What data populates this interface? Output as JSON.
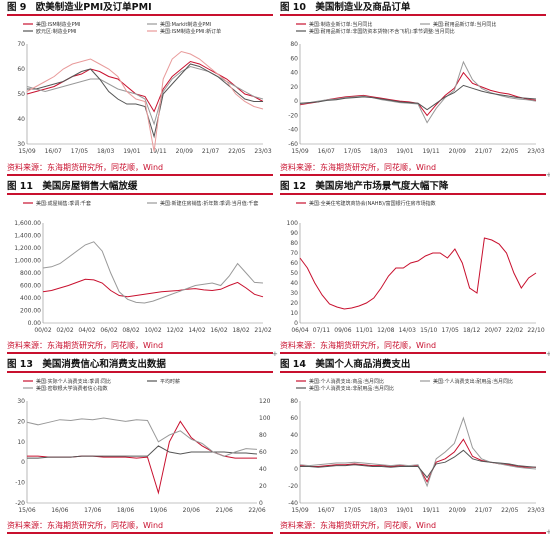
{
  "source_text": "资料来源：东海期货研究所，同花顺，Wind",
  "panels": [
    {
      "fig": "图 9",
      "title": "欧美制造业PMI及订单PMI",
      "chart_data": {
        "type": "line",
        "legend": [
          "美国:ISM制造业PMI",
          "美国:Markit制造业PMI",
          "欧元区:制造业PMI",
          "美国:ISM制造业PMI:新订单"
        ],
        "colors": [
          "#c8102e",
          "#999999",
          "#555555",
          "#e89a9a"
        ],
        "xticks": [
          "15/09",
          "16/07",
          "17/05",
          "18/03",
          "19/01",
          "19/11",
          "20/09",
          "21/07",
          "22/05",
          "23/03"
        ],
        "yticks": [
          "70",
          "60",
          "50",
          "40",
          "30"
        ],
        "ylim": [
          30,
          70
        ],
        "series": [
          {
            "values": [
              50,
              51,
              52,
              53,
              55,
              57,
              58,
              60,
              59,
              57,
              56,
              53,
              50,
              49,
              43,
              52,
              57,
              60,
              63,
              62,
              60,
              58,
              56,
              53,
              50,
              49,
              47
            ]
          },
          {
            "values": [
              53,
              52,
              51,
              52,
              53,
              54,
              55,
              56,
              56,
              54,
              52,
              51,
              50,
              48,
              38,
              51,
              56,
              59,
              61,
              60,
              59,
              57,
              55,
              53,
              51,
              49,
              48
            ]
          },
          {
            "values": [
              52,
              52,
              53,
              54,
              55,
              57,
              59,
              60,
              56,
              51,
              48,
              46,
              46,
              45,
              33,
              50,
              54,
              58,
              62,
              61,
              59,
              57,
              54,
              51,
              48,
              47,
              47
            ]
          },
          {
            "values": [
              51,
              53,
              55,
              57,
              60,
              62,
              63,
              64,
              62,
              60,
              57,
              51,
              48,
              47,
              27,
              56,
              64,
              67,
              66,
              64,
              61,
              58,
              55,
              50,
              47,
              45,
              44
            ]
          }
        ]
      }
    },
    {
      "fig": "图 10",
      "title": "美国制造业及商品订单",
      "chart_data": {
        "type": "line",
        "legend": [
          "美国:制造业新订单:当月同比",
          "美国:耐用品新订单:当月同比",
          "美国:耐用品新订单:非国防资本货物(不含飞机):季节调整:当月同比"
        ],
        "colors": [
          "#c8102e",
          "#999999",
          "#555555"
        ],
        "xticks": [
          "15/09",
          "16/07",
          "17/05",
          "18/03",
          "19/01",
          "19/11",
          "20/09",
          "21/07",
          "22/05",
          "23/03"
        ],
        "yticks": [
          "80",
          "60",
          "40",
          "20",
          "0",
          "-20",
          "-40",
          "-60"
        ],
        "ylim": [
          -60,
          80
        ],
        "series": [
          {
            "values": [
              -5,
              -3,
              -1,
              2,
              4,
              6,
              7,
              8,
              6,
              4,
              2,
              0,
              -1,
              -3,
              -20,
              -5,
              8,
              18,
              40,
              25,
              20,
              15,
              12,
              10,
              6,
              3,
              1
            ]
          },
          {
            "values": [
              -4,
              -2,
              0,
              2,
              3,
              5,
              6,
              7,
              5,
              2,
              0,
              -2,
              -3,
              -4,
              -30,
              -10,
              5,
              15,
              55,
              30,
              18,
              12,
              8,
              5,
              3,
              2,
              0
            ]
          },
          {
            "values": [
              -3,
              -2,
              -1,
              1,
              2,
              4,
              5,
              6,
              5,
              3,
              1,
              -1,
              -2,
              -3,
              -12,
              -3,
              6,
              12,
              22,
              18,
              14,
              11,
              9,
              7,
              5,
              4,
              3
            ]
          }
        ]
      }
    },
    {
      "fig": "图 11",
      "title": "美国房屋销售大幅放缓",
      "chart_data": {
        "type": "line",
        "legend": [
          "美国:成屋销售:季调:千套",
          "美国:新建住房销售:折年数:季调:当月值:千套"
        ],
        "colors": [
          "#c8102e",
          "#999999"
        ],
        "xticks": [
          "00/02",
          "02/02",
          "04/02",
          "06/02",
          "08/02",
          "10/02",
          "12/02",
          "14/02",
          "16/02",
          "18/02",
          "21/02"
        ],
        "yticks": [
          "1,600.00",
          "1,400.00",
          "1,200.00",
          "1,000.00",
          "800.00",
          "600.00",
          "400.00",
          "200.00",
          "0.00"
        ],
        "ylim": [
          0,
          1600
        ],
        "series": [
          {
            "values": [
              500,
              520,
              560,
              600,
              650,
              700,
              690,
              640,
              520,
              440,
              420,
              440,
              460,
              480,
              500,
              510,
              520,
              540,
              550,
              530,
              520,
              540,
              600,
              650,
              560,
              460,
              420
            ]
          },
          {
            "values": [
              880,
              900,
              950,
              1050,
              1150,
              1250,
              1300,
              1150,
              800,
              500,
              380,
              330,
              320,
              350,
              400,
              450,
              500,
              550,
              600,
              620,
              640,
              600,
              750,
              950,
              800,
              650,
              640
            ]
          }
        ]
      }
    },
    {
      "fig": "图 12",
      "title": "美国房地产市场景气度大幅下降",
      "chart_data": {
        "type": "line",
        "legend": [
          "美国:全美住宅建筑商协会(NAHB)/富国银行住房市场指数"
        ],
        "colors": [
          "#c8102e"
        ],
        "xticks": [
          "06/04",
          "07/11",
          "09/06",
          "11/01",
          "12/08",
          "14/03",
          "15/10",
          "17/05",
          "18/12",
          "20/07",
          "22/02",
          "22/10"
        ],
        "yticks": [
          "100",
          "90",
          "80",
          "70",
          "60",
          "50",
          "40",
          "30",
          "20",
          "10",
          "0"
        ],
        "ylim": [
          0,
          100
        ],
        "series": [
          {
            "values": [
              65,
              55,
              40,
              28,
              19,
              16,
              14,
              15,
              17,
              20,
              25,
              35,
              47,
              55,
              55,
              60,
              62,
              67,
              70,
              70,
              65,
              74,
              60,
              35,
              30,
              85,
              83,
              79,
              70,
              50,
              35,
              45,
              50
            ]
          }
        ]
      }
    },
    {
      "fig": "图 13",
      "title": "美国消费信心和消费支出数据",
      "chart_data": {
        "type": "line",
        "legend": [
          "美国:实际个人消费支出:季调:同比",
          "平均时薪",
          "美国:密歇根大学消费者信心指数"
        ],
        "colors": [
          "#c8102e",
          "#555555",
          "#999999"
        ],
        "xticks": [
          "15/06",
          "16/06",
          "17/06",
          "18/06",
          "19/06",
          "20/06",
          "21/06",
          "22/06"
        ],
        "yticks_left": [
          "30",
          "20",
          "10",
          "0",
          "-10",
          "-20"
        ],
        "yticks_right": [
          "120",
          "100",
          "80",
          "60",
          "40",
          "20",
          "0"
        ],
        "ylim": [
          -20,
          30
        ],
        "series": [
          {
            "values": [
              3,
              3,
              2.5,
              2.5,
              2.5,
              3,
              3,
              2.5,
              2.5,
              2.5,
              2,
              2.5,
              -15,
              10,
              20,
              12,
              8,
              5,
              3,
              2,
              2,
              2
            ]
          },
          {
            "values": [
              2,
              2,
              2.5,
              2.5,
              2.5,
              3,
              3,
              3,
              3,
              3,
              3,
              3,
              8,
              5,
              4,
              5,
              5,
              5,
              5,
              4.5,
              4.5,
              4
            ]
          },
          {
            "values": [
              95,
              92,
              95,
              98,
              97,
              99,
              98,
              100,
              98,
              96,
              98,
              97,
              72,
              80,
              85,
              75,
              70,
              60,
              55,
              60,
              64,
              63
            ]
          }
        ]
      }
    },
    {
      "fig": "图 14",
      "title": "美国个人商品消费支出",
      "chart_data": {
        "type": "line",
        "legend": [
          "美国:个人消费支出:商品:当月同比",
          "美国:个人消费支出:耐用品:当月同比",
          "美国:个人消费支出:非耐用品:当月同比"
        ],
        "colors": [
          "#c8102e",
          "#999999",
          "#555555"
        ],
        "xticks": [
          "15/09",
          "16/07",
          "17/05",
          "18/03",
          "19/01",
          "19/11",
          "20/09",
          "21/07",
          "22/05",
          "23/03"
        ],
        "yticks": [
          "80",
          "60",
          "40",
          "20",
          "0",
          "-20",
          "-40"
        ],
        "ylim": [
          -40,
          80
        ],
        "series": [
          {
            "values": [
              4,
              3,
              3,
              4,
              5,
              5,
              6,
              5,
              4,
              4,
              3,
              4,
              3,
              4,
              -15,
              8,
              12,
              20,
              35,
              15,
              10,
              8,
              6,
              5,
              3,
              2,
              2
            ]
          },
          {
            "values": [
              5,
              4,
              5,
              6,
              7,
              7,
              8,
              7,
              6,
              5,
              4,
              5,
              4,
              5,
              -20,
              12,
              20,
              30,
              60,
              25,
              12,
              8,
              6,
              4,
              2,
              1,
              0
            ]
          },
          {
            "values": [
              3,
              3,
              2,
              3,
              4,
              4,
              5,
              4,
              3,
              3,
              2,
              3,
              3,
              3,
              -10,
              6,
              8,
              14,
              22,
              12,
              9,
              8,
              7,
              6,
              4,
              3,
              2
            ]
          }
        ]
      }
    }
  ]
}
